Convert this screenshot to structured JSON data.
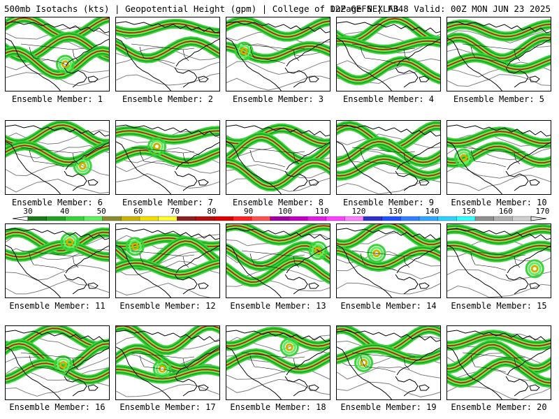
{
  "header": {
    "left": "500mb Isotachs (kts) | Geopotential Height (gpm) | College of DuPage NEXLAB",
    "right": "12Z GEFS | F348 Valid: 00Z MON JUN 23 2025"
  },
  "colorbar": {
    "ticks": [
      "30",
      "40",
      "50",
      "60",
      "70",
      "80",
      "90",
      "100",
      "110",
      "120",
      "130",
      "140",
      "150",
      "160",
      "170"
    ],
    "colors": [
      "#1a7a1a",
      "#21a321",
      "#39d439",
      "#5ef05e",
      "#8c8c2c",
      "#c8b400",
      "#f0e000",
      "#ffff30",
      "#8c2020",
      "#b01010",
      "#d80000",
      "#ff2020",
      "#ff5050",
      "#a000a0",
      "#c000c0",
      "#e020e0",
      "#ff40ff",
      "#ff80ff",
      "#3030c8",
      "#2050ff",
      "#3080ff",
      "#30a8ff",
      "#30d0ff",
      "#30ffff",
      "#909090",
      "#b0b0b0",
      "#d0d0d0"
    ]
  },
  "members": [
    {
      "label": "Ensemble Member: 1"
    },
    {
      "label": "Ensemble Member: 2"
    },
    {
      "label": "Ensemble Member: 3"
    },
    {
      "label": "Ensemble Member: 4"
    },
    {
      "label": "Ensemble Member: 5"
    },
    {
      "label": "Ensemble Member: 6"
    },
    {
      "label": "Ensemble Member: 7"
    },
    {
      "label": "Ensemble Member: 8"
    },
    {
      "label": "Ensemble Member: 9"
    },
    {
      "label": "Ensemble Member: 10"
    },
    {
      "label": "Ensemble Member: 11"
    },
    {
      "label": "Ensemble Member: 12"
    },
    {
      "label": "Ensemble Member: 13"
    },
    {
      "label": "Ensemble Member: 14"
    },
    {
      "label": "Ensemble Member: 15"
    },
    {
      "label": "Ensemble Member: 16"
    },
    {
      "label": "Ensemble Member: 17"
    },
    {
      "label": "Ensemble Member: 18"
    },
    {
      "label": "Ensemble Member: 19"
    },
    {
      "label": "Ensemble Member: 20"
    }
  ]
}
